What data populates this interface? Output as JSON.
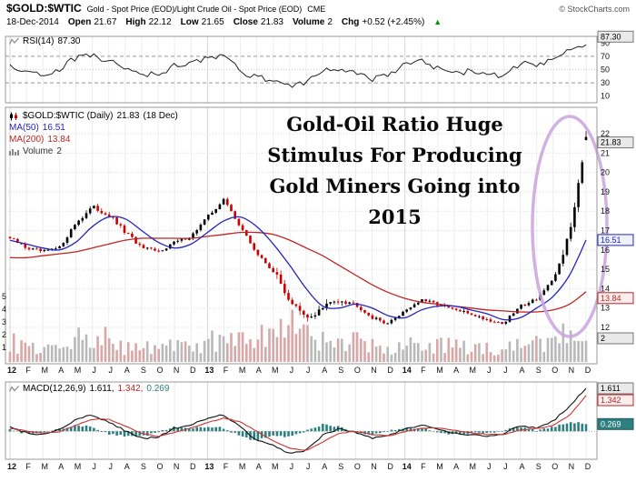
{
  "header": {
    "symbol": "$GOLD:$WTIC",
    "description": "Gold - Spot Price (EOD)/Light Crude Oil - Spot Price (EOD)",
    "exchange": "CME",
    "copyright": "© StockCharts.com",
    "date": "18-Dec-2014",
    "quote_items": [
      {
        "label": "Open",
        "value": "21.67"
      },
      {
        "label": "High",
        "value": "22.12"
      },
      {
        "label": "Low",
        "value": "21.65"
      },
      {
        "label": "Close",
        "value": "21.83"
      },
      {
        "label": "Volume",
        "value": "2"
      },
      {
        "label": "Chg",
        "value": "+0.52 (+2.45%)"
      }
    ],
    "up_arrow": "▲"
  },
  "panels": {
    "rsi": {
      "name": "RSI(14)",
      "value": "87.30"
    },
    "main": {
      "name": "$GOLD:$WTIC (Daily)",
      "value": "21.83",
      "date_note": "(18 Dec)",
      "ma50_name": "MA(50)",
      "ma50_value": "16.51",
      "ma200_name": "MA(200)",
      "ma200_value": "13.84",
      "volume_name": "Volume",
      "volume_value": "2"
    },
    "macd": {
      "name": "MACD(12,26,9)",
      "value1": "1.611",
      "value2": "1.342",
      "value3": "0.269"
    }
  },
  "annotation": {
    "lines": [
      "Gold-Oil Ratio Huge",
      "Stimulus For Producing",
      "Gold Miners Going into",
      "2015"
    ]
  },
  "colors": {
    "candle_up": "#000000",
    "candle_down": "#cc0000",
    "volume_up": "#b9b9b9",
    "volume_down": "#d8a7a7",
    "ma50": "#2424c0",
    "ma200": "#c02424",
    "rsi_line": "#222222",
    "macd_line": "#111111",
    "signal_line": "#cc3333",
    "histogram": "#2e8080",
    "ellipse": "#c9a3dc",
    "positive": "#009900"
  },
  "chart_data": [
    {
      "id": "rsi",
      "type": "line",
      "title": "RSI(14)",
      "ylim": [
        0,
        100
      ],
      "yticks": [
        90,
        70,
        50,
        30,
        10
      ],
      "overbought": 70,
      "midline": 50,
      "oversold": 30,
      "last": 87.3,
      "values": [
        58,
        46,
        42,
        50,
        68,
        72,
        63,
        52,
        44,
        42,
        56,
        60,
        68,
        70,
        48,
        38,
        34,
        26,
        32,
        48,
        52,
        44,
        36,
        40,
        58,
        62,
        52,
        44,
        48,
        42,
        40,
        60,
        54,
        64,
        78,
        87.3
      ]
    },
    {
      "id": "price",
      "type": "candlestick",
      "title": "$GOLD:$WTIC (Daily)",
      "categories": [
        "12",
        "F",
        "M",
        "A",
        "M",
        "J",
        "J",
        "A",
        "S",
        "O",
        "N",
        "D",
        "13",
        "F",
        "M",
        "A",
        "M",
        "J",
        "J",
        "A",
        "S",
        "O",
        "N",
        "D",
        "14",
        "F",
        "M",
        "A",
        "M",
        "J",
        "J",
        "A",
        "S",
        "O",
        "N",
        "D"
      ],
      "ylim": [
        10.1,
        23.4
      ],
      "yticks": [
        22,
        21,
        20,
        19,
        18,
        17,
        16,
        15,
        14,
        13,
        12
      ],
      "last_ohlc": {
        "open": 21.67,
        "high": 22.12,
        "low": 21.65,
        "close": 21.83
      },
      "close": [
        16.6,
        16.1,
        15.9,
        16.1,
        17.4,
        18.2,
        17.8,
        16.9,
        16.1,
        15.9,
        16.4,
        16.7,
        17.7,
        18.6,
        17.2,
        15.8,
        14.9,
        13.4,
        12.4,
        13.0,
        13.5,
        13.2,
        12.5,
        12.2,
        12.9,
        13.4,
        13.2,
        12.9,
        12.7,
        12.4,
        12.2,
        13.1,
        13.5,
        14.4,
        16.8,
        21.83
      ],
      "ma50": [
        16.5,
        16.3,
        16.1,
        16.0,
        16.4,
        17.2,
        17.7,
        17.6,
        17.0,
        16.4,
        16.1,
        16.3,
        16.9,
        17.5,
        17.7,
        17.2,
        16.3,
        15.2,
        14.0,
        13.1,
        13.0,
        13.2,
        13.0,
        12.6,
        12.5,
        12.9,
        13.1,
        13.1,
        12.9,
        12.7,
        12.4,
        12.5,
        13.0,
        13.6,
        14.7,
        16.51
      ],
      "ma200": [
        15.6,
        15.6,
        15.7,
        15.8,
        15.9,
        16.1,
        16.3,
        16.5,
        16.6,
        16.6,
        16.6,
        16.6,
        16.7,
        16.8,
        16.9,
        16.9,
        16.8,
        16.5,
        16.1,
        15.7,
        15.2,
        14.7,
        14.2,
        13.8,
        13.5,
        13.3,
        13.2,
        13.1,
        13.0,
        12.9,
        12.85,
        12.8,
        12.8,
        12.9,
        13.2,
        13.84
      ],
      "volume": [
        1.4,
        1.1,
        1.0,
        1.1,
        1.8,
        2.2,
        1.5,
        1.1,
        1.3,
        1.1,
        1.0,
        1.1,
        1.8,
        1.6,
        1.4,
        1.9,
        1.6,
        2.6,
        2.2,
        1.5,
        1.2,
        1.4,
        1.1,
        1.0,
        1.5,
        1.2,
        1.1,
        1.3,
        1.0,
        1.0,
        1.1,
        1.4,
        1.2,
        1.6,
        2.0,
        2.4
      ],
      "vol_yticks": [
        5,
        4,
        3,
        2,
        1
      ],
      "last_ma50": 16.51,
      "last_ma200": 13.84,
      "last_volume": 2
    },
    {
      "id": "macd",
      "type": "line+histogram",
      "title": "MACD(12,26,9)",
      "ylim": [
        -1.05,
        1.85
      ],
      "last_macd": 1.611,
      "last_signal": 1.342,
      "last_hist": 0.269,
      "macd": [
        0.15,
        -0.05,
        -0.12,
        0.08,
        0.45,
        0.6,
        0.35,
        0.02,
        -0.28,
        -0.22,
        0.12,
        0.22,
        0.5,
        0.62,
        0.15,
        -0.35,
        -0.55,
        -0.85,
        -0.7,
        -0.15,
        0.1,
        -0.05,
        -0.25,
        -0.18,
        0.12,
        0.22,
        0.1,
        -0.08,
        -0.12,
        -0.16,
        -0.1,
        0.22,
        0.12,
        0.38,
        0.95,
        1.611
      ],
      "signal": [
        0.1,
        0.02,
        -0.08,
        -0.02,
        0.22,
        0.45,
        0.45,
        0.2,
        -0.08,
        -0.2,
        -0.04,
        0.12,
        0.32,
        0.5,
        0.35,
        0.0,
        -0.35,
        -0.65,
        -0.72,
        -0.4,
        -0.08,
        0.0,
        -0.12,
        -0.18,
        -0.02,
        0.12,
        0.13,
        0.04,
        -0.06,
        -0.12,
        -0.12,
        0.05,
        0.1,
        0.22,
        0.6,
        1.342
      ]
    }
  ]
}
